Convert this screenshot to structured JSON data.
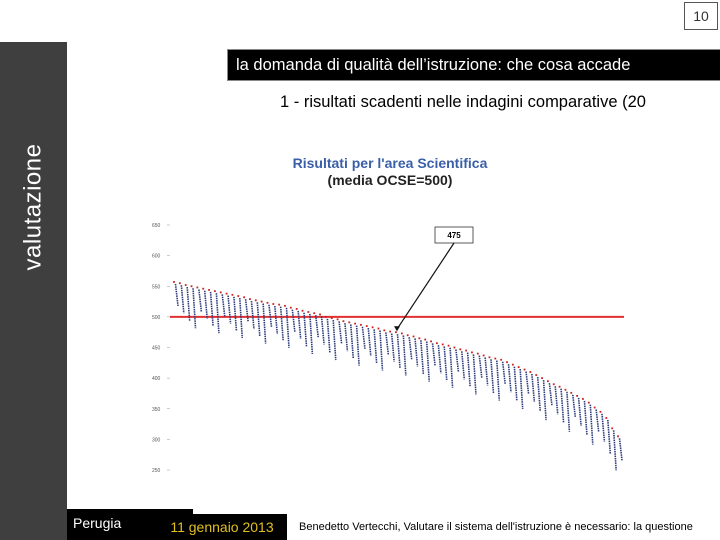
{
  "slide_number": "10",
  "side_label": "valutazione",
  "title": "la domanda di qualità dell’istruzione: che cosa accade",
  "subtitle": "1 - risultati scadenti nelle indagini comparative (20",
  "footer": {
    "place": "Perugia",
    "date": "11 gennaio 2013",
    "author": "Benedetto Vertecchi, Valutare il sistema dell'istruzione è necessario: la questione"
  },
  "colors": {
    "side_bar": "#3f3f3f",
    "title_box": "#000000",
    "footer_date_text": "#e0c020",
    "chart_title": "#3a5fa8",
    "mean_line": "#e23030",
    "country_labels": "#2c3a7a",
    "marker": "#cc2222"
  },
  "chart_data": {
    "type": "scatter",
    "title": "Risultati per l'area Scientifica",
    "subtitle": "(media OCSE=500)",
    "ylim": [
      250,
      650
    ],
    "yticks": [
      650,
      600,
      550,
      500,
      450,
      400,
      350,
      300,
      250
    ],
    "reference_line": 500,
    "callout": {
      "label": "475"
    },
    "values": [
      557,
      555,
      552,
      550,
      548,
      546,
      544,
      542,
      540,
      538,
      536,
      534,
      532,
      529,
      527,
      525,
      523,
      521,
      520,
      518,
      515,
      513,
      510,
      508,
      506,
      504,
      500,
      498,
      496,
      493,
      491,
      489,
      487,
      485,
      483,
      481,
      478,
      476,
      475,
      473,
      470,
      468,
      465,
      463,
      460,
      457,
      455,
      453,
      450,
      447,
      445,
      442,
      440,
      437,
      434,
      432,
      430,
      426,
      422,
      418,
      414,
      410,
      405,
      400,
      395,
      390,
      386,
      381,
      376,
      371,
      366,
      360,
      352,
      345,
      335,
      318,
      305
    ]
  }
}
